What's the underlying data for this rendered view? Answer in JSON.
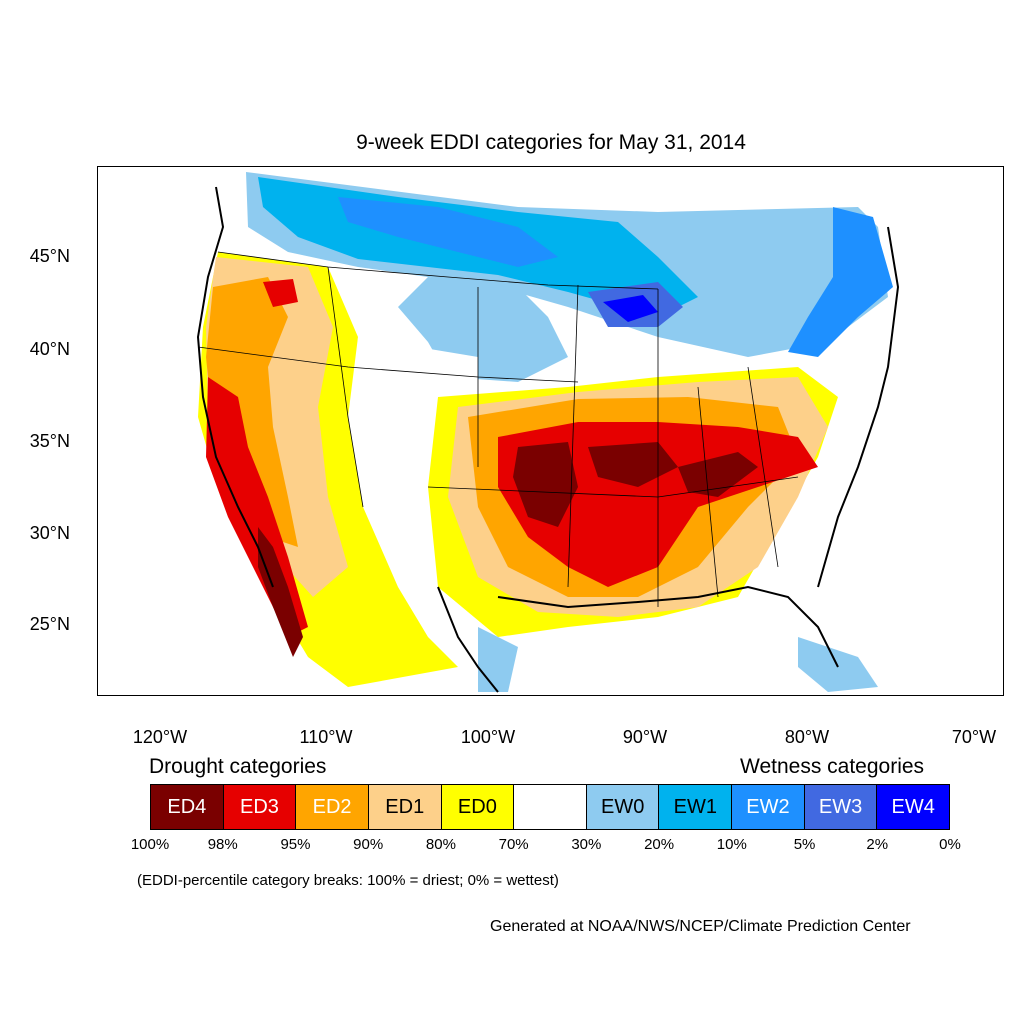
{
  "title": "9-week EDDI categories for May 31, 2014",
  "axes": {
    "lat_labels": [
      "45°N",
      "40°N",
      "35°N",
      "30°N",
      "25°N"
    ],
    "lon_labels": [
      "120°W",
      "110°W",
      "100°W",
      "90°W",
      "80°W",
      "70°W"
    ]
  },
  "legend": {
    "drought_heading": "Drought categories",
    "wetness_heading": "Wetness categories",
    "categories": [
      {
        "label": "ED4",
        "color": "#7a0000",
        "text_color": "#ffffff"
      },
      {
        "label": "ED3",
        "color": "#e60000",
        "text_color": "#ffffff"
      },
      {
        "label": "ED2",
        "color": "#ffa500",
        "text_color": "#ffffff"
      },
      {
        "label": "ED1",
        "color": "#fdd08a",
        "text_color": "#000000"
      },
      {
        "label": "ED0",
        "color": "#ffff00",
        "text_color": "#000000"
      },
      {
        "label": "",
        "color": "#ffffff",
        "text_color": "#000000"
      },
      {
        "label": "EW0",
        "color": "#8ecbf0",
        "text_color": "#000000"
      },
      {
        "label": "EW1",
        "color": "#00b2ee",
        "text_color": "#000000"
      },
      {
        "label": "EW2",
        "color": "#1e90ff",
        "text_color": "#ffffff"
      },
      {
        "label": "EW3",
        "color": "#4169e1",
        "text_color": "#ffffff"
      },
      {
        "label": "EW4",
        "color": "#0000ff",
        "text_color": "#ffffff"
      }
    ],
    "breaks": [
      "100%",
      "98%",
      "95%",
      "90%",
      "80%",
      "70%",
      "30%",
      "20%",
      "10%",
      "5%",
      "2%",
      "0%"
    ]
  },
  "note": "(EDDI-percentile category breaks: 100% = driest; 0% = wettest)",
  "credit": "Generated at NOAA/NWS/NCEP/Climate Prediction Center"
}
